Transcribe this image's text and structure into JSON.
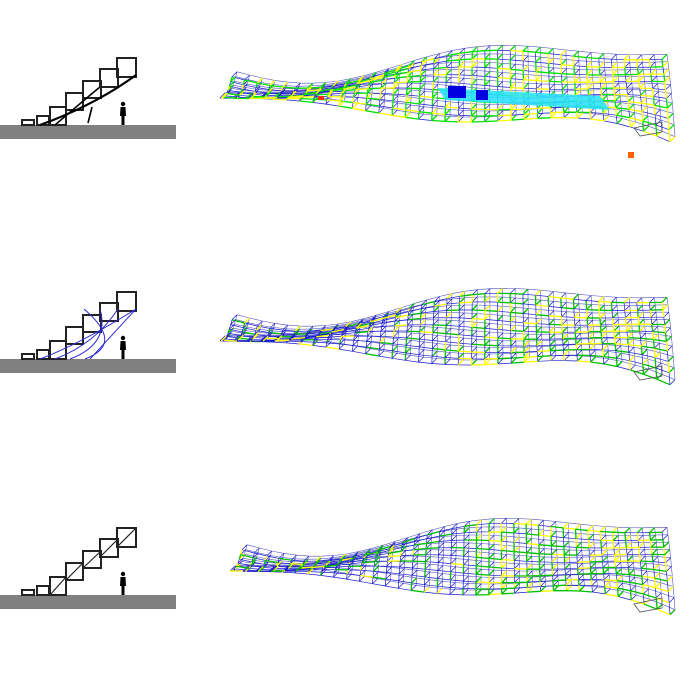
{
  "rows": [
    {
      "variant": "large-arch-brace",
      "support_color": "#000000",
      "palette": [
        "#1a1ad0",
        "#00e000",
        "#ffff00",
        "#ffd000"
      ]
    },
    {
      "variant": "blue-cable-truss",
      "support_color": "#2b2bd6",
      "palette": [
        "#1a1ad0",
        "#3030e0",
        "#00c000",
        "#ffff00"
      ]
    },
    {
      "variant": "diagonal-braced-boxes",
      "support_color": "#000000",
      "palette": [
        "#1a1ad0",
        "#2020c0",
        "#00c000",
        "#ffff00"
      ]
    }
  ],
  "colors": {
    "ground": "#808080",
    "frame": "#222222",
    "figure": "#000000"
  }
}
